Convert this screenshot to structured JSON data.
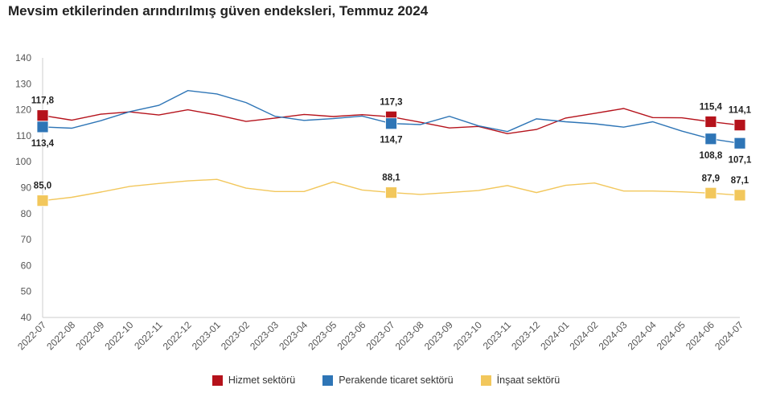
{
  "title": "Mevsim etkilerinden arındırılmış güven endeksleri, Temmuz 2024",
  "chart_data": {
    "type": "line",
    "categories": [
      "2022-07",
      "2022-08",
      "2022-09",
      "2022-10",
      "2022-11",
      "2022-12",
      "2023-01",
      "2023-02",
      "2023-03",
      "2023-04",
      "2023-05",
      "2023-06",
      "2023-07",
      "2023-08",
      "2023-09",
      "2023-10",
      "2023-11",
      "2023-12",
      "2024-01",
      "2024-02",
      "2024-03",
      "2024-04",
      "2024-05",
      "2024-06",
      "2024-07"
    ],
    "ylim": [
      40,
      140
    ],
    "yticks": [
      40,
      50,
      60,
      70,
      80,
      90,
      100,
      110,
      120,
      130,
      140
    ],
    "ytick_labels": [
      "40",
      "50",
      "60",
      "70",
      "80",
      "90",
      "100",
      "110",
      "120",
      "130",
      "140"
    ],
    "grid": false,
    "legend_position": "bottom",
    "series": [
      {
        "name": "Hizmet sektörü",
        "color": "#b5121b",
        "values": [
          117.8,
          116.0,
          118.3,
          119.2,
          118.0,
          120.0,
          118.0,
          115.5,
          116.8,
          118.2,
          117.4,
          118.1,
          117.3,
          115.2,
          113.0,
          113.6,
          110.8,
          112.4,
          116.8,
          118.6,
          120.5,
          117.0,
          116.9,
          115.4,
          114.1
        ],
        "labels": [
          {
            "index": 0,
            "text": "117,8",
            "pos": "above"
          },
          {
            "index": 12,
            "text": "117,3",
            "pos": "above"
          },
          {
            "index": 23,
            "text": "115,4",
            "pos": "above"
          },
          {
            "index": 24,
            "text": "114,1",
            "pos": "above"
          }
        ]
      },
      {
        "name": "Perakende ticaret sektörü",
        "color": "#2e75b6",
        "values": [
          113.4,
          112.9,
          115.8,
          119.3,
          121.7,
          127.4,
          126.1,
          122.8,
          117.5,
          115.9,
          116.6,
          117.6,
          114.7,
          114.3,
          117.5,
          113.8,
          111.6,
          116.5,
          115.4,
          114.6,
          113.3,
          115.4,
          111.8,
          108.8,
          107.1
        ],
        "labels": [
          {
            "index": 0,
            "text": "113,4",
            "pos": "below"
          },
          {
            "index": 12,
            "text": "114,7",
            "pos": "below"
          },
          {
            "index": 23,
            "text": "108,8",
            "pos": "below"
          },
          {
            "index": 24,
            "text": "107,1",
            "pos": "below"
          }
        ]
      },
      {
        "name": "İnşaat sektörü",
        "color": "#f2c75c",
        "values": [
          85.0,
          86.3,
          88.3,
          90.5,
          91.6,
          92.6,
          93.2,
          89.8,
          88.5,
          88.5,
          92.2,
          89.1,
          88.1,
          87.4,
          88.1,
          88.9,
          90.8,
          88.1,
          90.9,
          91.8,
          88.7,
          88.7,
          88.4,
          87.9,
          87.1
        ],
        "labels": [
          {
            "index": 0,
            "text": "85,0",
            "pos": "above"
          },
          {
            "index": 12,
            "text": "88,1",
            "pos": "above"
          },
          {
            "index": 23,
            "text": "87,9",
            "pos": "above"
          },
          {
            "index": 24,
            "text": "87,1",
            "pos": "above"
          }
        ]
      }
    ]
  }
}
